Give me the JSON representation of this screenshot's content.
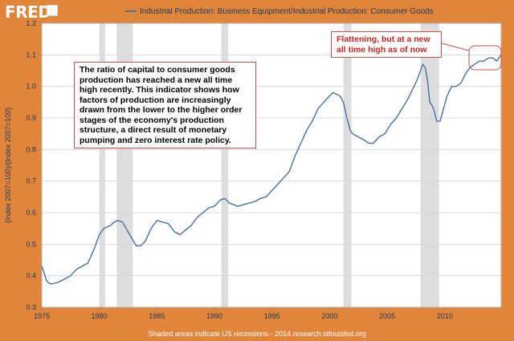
{
  "header": {
    "logo_text": "FRED",
    "legend_label": "Industrial Production: Business Equipment/Industrial Production: Consumer Goods"
  },
  "footer": {
    "text": "Shaded areas indicate US recessions - 2014 research.stlouisfed.org"
  },
  "colors": {
    "background": "#E1853B",
    "line": "#4572A7",
    "recession": "#DDDDDD",
    "annotation_red": "#D32020"
  },
  "annotations": {
    "main": "The ratio of capital to consumer goods production has reached a new all time high recently. This indicator shows how factors of production are increasingly drawn from the lower to the higher order stages of the economy's production structure, a direct result of monetary pumping and zero interest rate policy.",
    "top_right": "Flattening, but at a new all time high as of now"
  },
  "chart_data": {
    "type": "line",
    "title": "",
    "xlabel": "",
    "ylabel": "(Index 2007=100)/(Index 2007=100)",
    "xlim": [
      1975.0,
      2014.9
    ],
    "ylim": [
      0.3,
      1.2
    ],
    "x_ticks": [
      1975,
      1980,
      1985,
      1990,
      1995,
      2000,
      2005,
      2010
    ],
    "y_ticks": [
      0.3,
      0.4,
      0.5,
      0.6,
      0.7,
      0.8,
      0.9,
      1.0,
      1.1,
      1.2
    ],
    "y_tick_labels": [
      "0.3",
      "0.4",
      "0.5",
      "0.6",
      "0.7",
      "0.8",
      "0.9",
      "1.0",
      "1.1",
      "1.2"
    ],
    "grid": true,
    "recessions": [
      [
        1980.0,
        1980.5
      ],
      [
        1981.5,
        1982.9
      ],
      [
        1990.6,
        1991.2
      ],
      [
        2001.2,
        2001.9
      ],
      [
        2007.9,
        2009.5
      ]
    ],
    "series": [
      {
        "name": "Industrial Production: Business Equipment/Industrial Production: Consumer Goods",
        "x": [
          1975.0,
          1975.2,
          1975.4,
          1975.7,
          1976.0,
          1976.5,
          1977.0,
          1977.5,
          1978.0,
          1978.5,
          1979.0,
          1979.5,
          1980.0,
          1980.4,
          1980.7,
          1981.0,
          1981.3,
          1981.6,
          1982.0,
          1982.4,
          1982.8,
          1983.2,
          1983.6,
          1984.0,
          1984.5,
          1985.0,
          1985.5,
          1986.0,
          1986.5,
          1987.0,
          1987.5,
          1988.0,
          1988.5,
          1989.0,
          1989.5,
          1990.0,
          1990.5,
          1990.9,
          1991.3,
          1991.7,
          1992.0,
          1992.5,
          1993.0,
          1993.5,
          1994.0,
          1994.5,
          1995.0,
          1995.5,
          1996.0,
          1996.5,
          1997.0,
          1997.5,
          1998.0,
          1998.5,
          1999.0,
          1999.5,
          2000.0,
          2000.3,
          2000.6,
          2000.9,
          2001.2,
          2001.5,
          2001.8,
          2002.0,
          2002.5,
          2003.0,
          2003.4,
          2003.8,
          2004.3,
          2004.8,
          2005.3,
          2005.8,
          2006.3,
          2006.8,
          2007.2,
          2007.6,
          2007.9,
          2008.1,
          2008.3,
          2008.5,
          2008.7,
          2008.9,
          2009.1,
          2009.3,
          2009.6,
          2009.9,
          2010.2,
          2010.6,
          2011.0,
          2011.4,
          2011.8,
          2012.2,
          2012.6,
          2013.0,
          2013.4,
          2013.8,
          2014.2,
          2014.5,
          2014.9
        ],
        "values": [
          0.43,
          0.41,
          0.385,
          0.375,
          0.375,
          0.38,
          0.39,
          0.4,
          0.42,
          0.43,
          0.44,
          0.48,
          0.53,
          0.55,
          0.555,
          0.56,
          0.57,
          0.575,
          0.57,
          0.545,
          0.52,
          0.495,
          0.495,
          0.51,
          0.55,
          0.575,
          0.57,
          0.565,
          0.54,
          0.53,
          0.545,
          0.56,
          0.585,
          0.6,
          0.615,
          0.62,
          0.64,
          0.645,
          0.63,
          0.625,
          0.62,
          0.625,
          0.63,
          0.635,
          0.645,
          0.65,
          0.67,
          0.69,
          0.71,
          0.73,
          0.78,
          0.82,
          0.86,
          0.89,
          0.93,
          0.95,
          0.97,
          0.98,
          0.975,
          0.97,
          0.95,
          0.9,
          0.86,
          0.85,
          0.84,
          0.83,
          0.82,
          0.82,
          0.84,
          0.85,
          0.88,
          0.9,
          0.93,
          0.96,
          0.99,
          1.02,
          1.05,
          1.07,
          1.06,
          1.02,
          0.95,
          0.94,
          0.92,
          0.89,
          0.89,
          0.93,
          0.97,
          1.0,
          1.0,
          1.01,
          1.04,
          1.06,
          1.07,
          1.08,
          1.08,
          1.09,
          1.09,
          1.08,
          1.1
        ]
      }
    ]
  }
}
